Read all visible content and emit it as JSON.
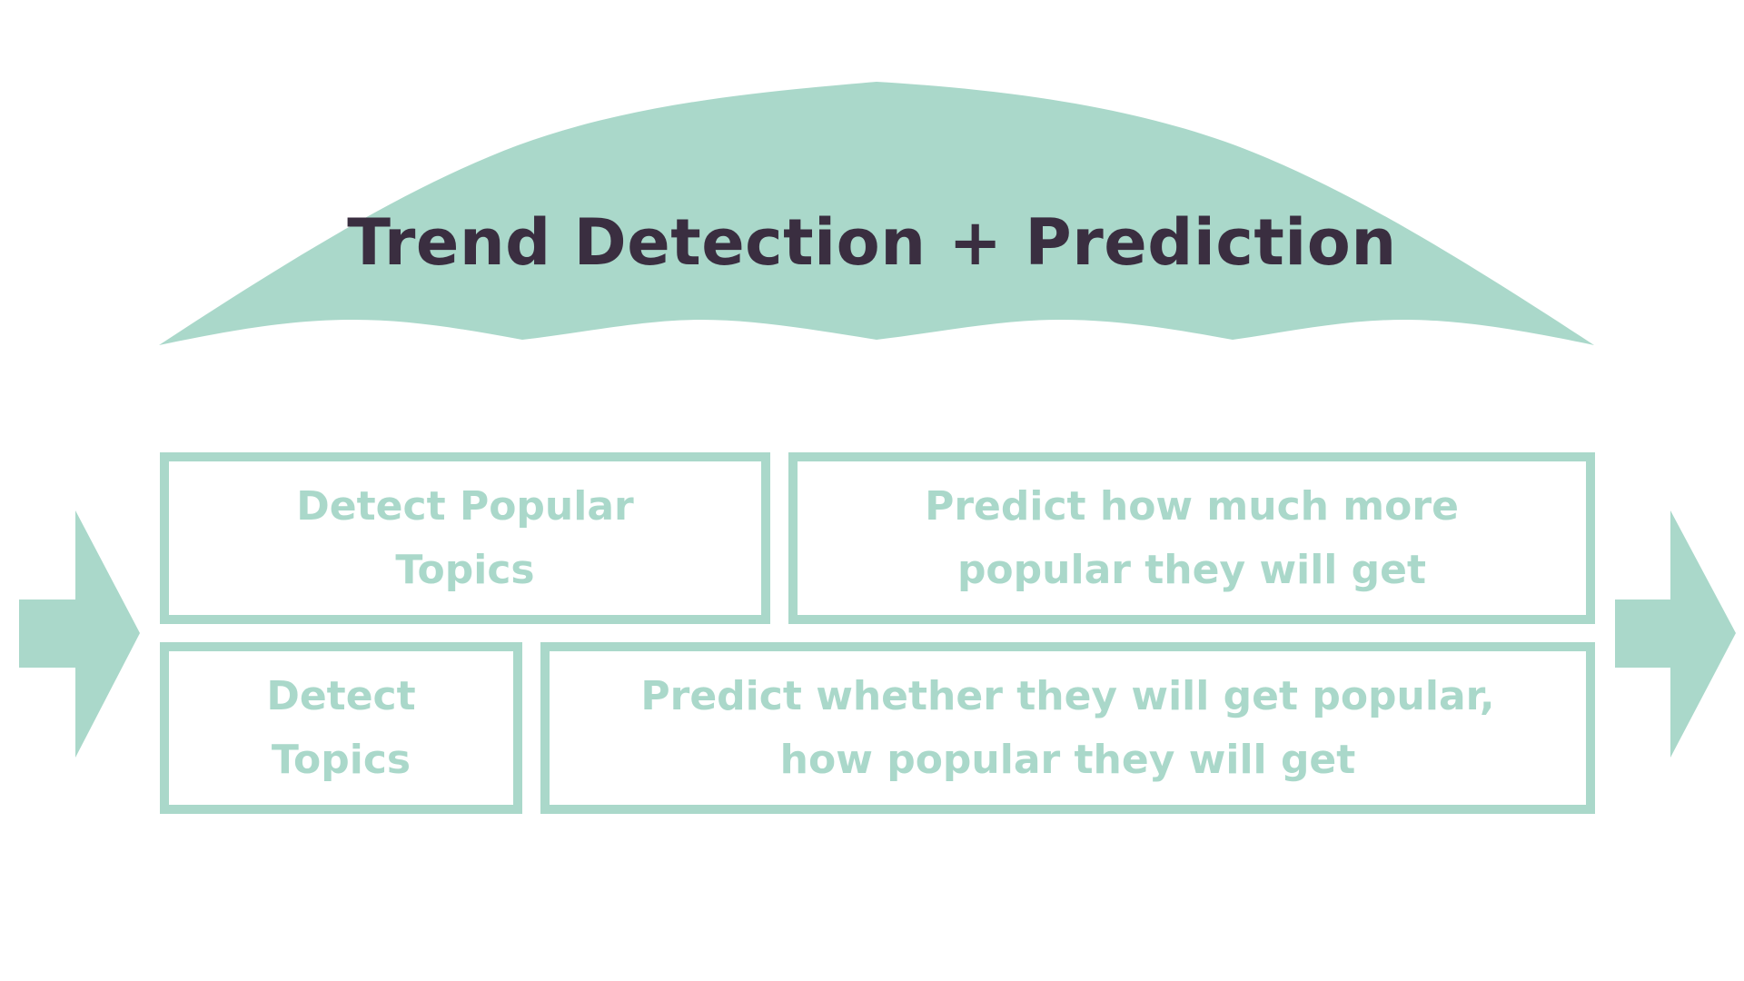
{
  "colors": {
    "accent": "#aad8ca",
    "title_text": "#3a2e40",
    "box_text": "#aad8ca",
    "background": "#ffffff"
  },
  "header": {
    "title": "Trend Detection + Prediction"
  },
  "boxes": [
    {
      "lines": [
        "Detect Popular",
        "Topics"
      ]
    },
    {
      "lines": [
        "Predict how much more",
        "popular they will get"
      ]
    },
    {
      "lines": [
        "Detect",
        "Topics"
      ]
    },
    {
      "lines": [
        "Predict whether they will get popular,",
        "how popular they will get"
      ]
    }
  ]
}
